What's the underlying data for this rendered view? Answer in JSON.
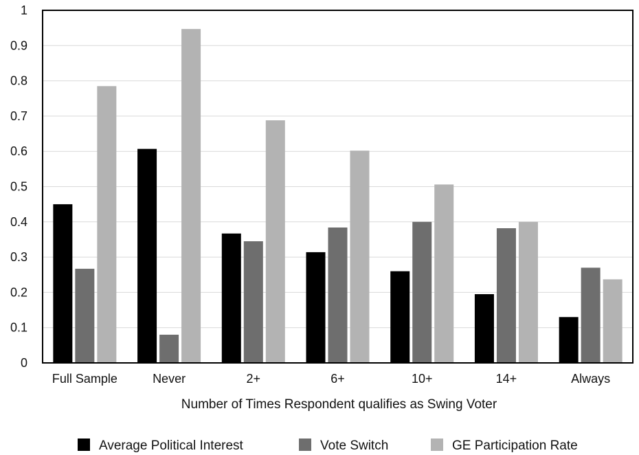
{
  "chart_data": {
    "type": "bar",
    "title": "",
    "xlabel": "Number of Times Respondent qualifies as Swing Voter",
    "ylabel": "",
    "ylim": [
      0,
      1
    ],
    "yticks": [
      "0",
      "0.1",
      "0.2",
      "0.3",
      "0.4",
      "0.5",
      "0.6",
      "0.7",
      "0.8",
      "0.9",
      "1"
    ],
    "grid": true,
    "legend_position": "bottom",
    "categories": [
      "Full Sample",
      "Never",
      "2+",
      "6+",
      "10+",
      "14+",
      "Always"
    ],
    "series": [
      {
        "name": "Average Political Interest",
        "color": "#000000",
        "values": [
          0.45,
          0.607,
          0.367,
          0.314,
          0.26,
          0.195,
          0.13
        ]
      },
      {
        "name": "Vote Switch",
        "color": "#6e6e6e",
        "values": [
          0.267,
          0.08,
          0.345,
          0.384,
          0.4,
          0.382,
          0.27
        ]
      },
      {
        "name": "GE Participation Rate",
        "color": "#b3b3b3",
        "values": [
          0.785,
          0.947,
          0.688,
          0.602,
          0.506,
          0.4,
          0.237
        ]
      }
    ]
  }
}
